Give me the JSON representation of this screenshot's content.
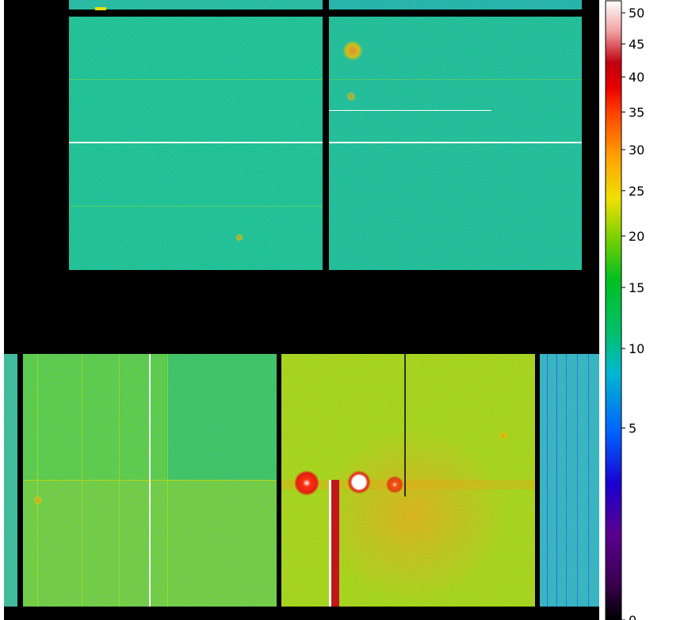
{
  "image": {
    "description_kind": "false-color detector intensity map with colorbar",
    "background_color": "#000000"
  },
  "colorbar": {
    "ticks": [
      {
        "label": "0",
        "value": 0
      },
      {
        "label": "5",
        "value": 5
      },
      {
        "label": "10",
        "value": 10
      },
      {
        "label": "15",
        "value": 15
      },
      {
        "label": "20",
        "value": 20
      },
      {
        "label": "25",
        "value": 25
      },
      {
        "label": "30",
        "value": 30
      },
      {
        "label": "35",
        "value": 35
      },
      {
        "label": "40",
        "value": 40
      },
      {
        "label": "45",
        "value": 45
      },
      {
        "label": "50",
        "value": 50
      }
    ],
    "range": [
      0,
      52
    ],
    "colors": [
      "#000000",
      "#5a0080",
      "#1a00c8",
      "#0050ff",
      "#00c0c0",
      "#00c030",
      "#80d000",
      "#f0e000",
      "#ffa000",
      "#ff4000",
      "#e00000",
      "#ffffff"
    ]
  },
  "panels": {
    "top_left_color": "#12c87a",
    "top_right_color": "#14c47e",
    "bottom_left_color": "#5fd22a",
    "bottom_middle_color": "#9ad418",
    "bottom_right_color": "#30b8b0",
    "hot_color": "#e02010",
    "saturated_color": "#ffffff"
  }
}
